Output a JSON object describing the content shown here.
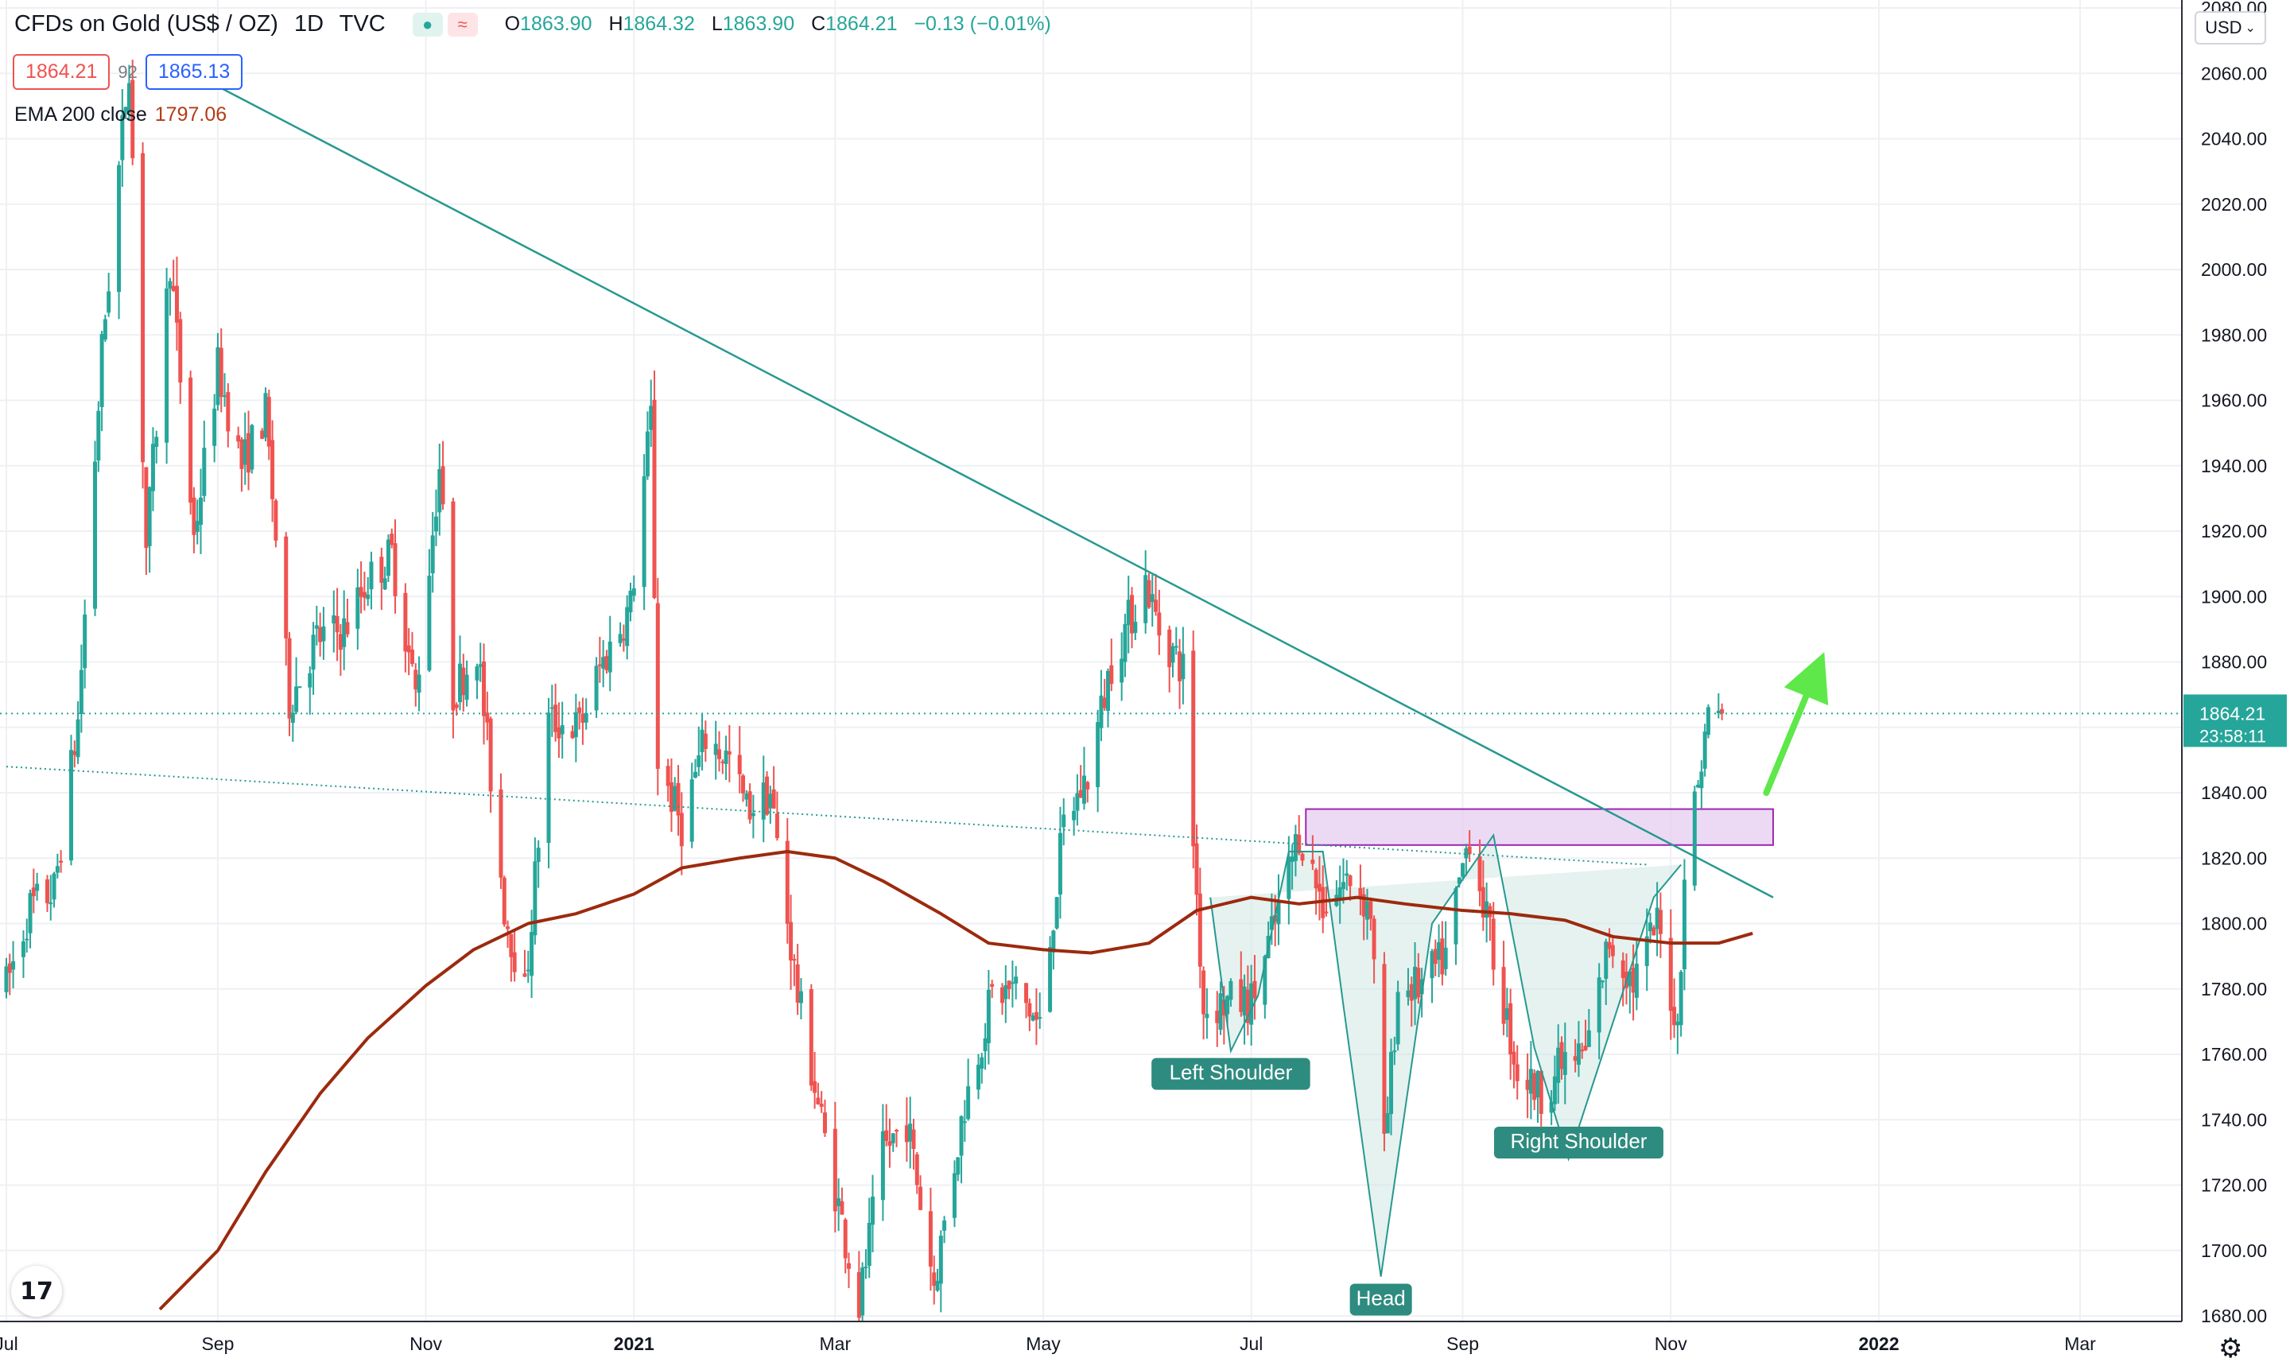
{
  "header": {
    "symbol": "CFDs on Gold (US$ / OZ)",
    "interval": "1D",
    "exchange": "TVC",
    "ohlc": {
      "o_label": "O",
      "open": "1863.90",
      "h_label": "H",
      "high": "1864.32",
      "l_label": "L",
      "low": "1863.90",
      "c_label": "C",
      "close": "1864.21",
      "change": "−0.13 (−0.01%)"
    },
    "sell_price": "1864.21",
    "spread": "92",
    "buy_price": "1865.13",
    "indicator_name": "EMA 200 close",
    "indicator_value": "1797.06"
  },
  "controls": {
    "currency": "USD",
    "eye_icon": "visibility-dot-icon",
    "wave_icon": "wave-icon",
    "settings_icon": "gear-icon",
    "logo_text": "17"
  },
  "colors": {
    "up": "#26a69a",
    "down": "#ef5350",
    "ema": "#9c2a0e",
    "trendline": "#26998f",
    "zone_fill": "#e6cdf0",
    "zone_stroke": "#9c27b0",
    "pattern_fill": "#cfe8e4",
    "arrow": "#5ee84a",
    "grid": "#eef0f3"
  },
  "chart_data": {
    "type": "candlestick",
    "y_axis": {
      "ticks": [
        "2080.00",
        "2060.00",
        "2040.00",
        "2020.00",
        "2000.00",
        "1980.00",
        "1960.00",
        "1940.00",
        "1920.00",
        "1900.00",
        "1880.00",
        "1860.00",
        "1840.00",
        "1820.00",
        "1800.00",
        "1780.00",
        "1760.00",
        "1740.00",
        "1720.00",
        "1700.00",
        "1680.00"
      ],
      "ylim": [
        1680,
        2080
      ]
    },
    "x_axis": {
      "ticks": [
        "Jul",
        "Sep",
        "Nov",
        "2021",
        "Mar",
        "May",
        "Jul",
        "Sep",
        "Nov",
        "2022",
        "Mar"
      ],
      "tick_dates": [
        "2020-07-01",
        "2020-09-01",
        "2020-11-01",
        "2021-01-01",
        "2021-03-01",
        "2021-05-01",
        "2021-07-01",
        "2021-09-01",
        "2021-11-01",
        "2022-01-01",
        "2022-03-01"
      ]
    },
    "last_price": {
      "value": 1864.21,
      "label": "1864.21",
      "countdown": "23:58:11"
    },
    "price_path": [
      [
        "2020-07-01",
        1781
      ],
      [
        "2020-07-08",
        1805
      ],
      [
        "2020-07-15",
        1810
      ],
      [
        "2020-07-22",
        1862
      ],
      [
        "2020-07-29",
        1975
      ],
      [
        "2020-08-06",
        2064
      ],
      [
        "2020-08-11",
        1915
      ],
      [
        "2020-08-18",
        2003
      ],
      [
        "2020-08-25",
        1918
      ],
      [
        "2020-09-01",
        1970
      ],
      [
        "2020-09-08",
        1940
      ],
      [
        "2020-09-15",
        1956
      ],
      [
        "2020-09-22",
        1868
      ],
      [
        "2020-09-30",
        1887
      ],
      [
        "2020-10-08",
        1890
      ],
      [
        "2020-10-15",
        1905
      ],
      [
        "2020-10-22",
        1913
      ],
      [
        "2020-10-29",
        1870
      ],
      [
        "2020-11-05",
        1940
      ],
      [
        "2020-11-09",
        1870
      ],
      [
        "2020-11-16",
        1885
      ],
      [
        "2020-11-24",
        1805
      ],
      [
        "2020-11-30",
        1778
      ],
      [
        "2020-12-07",
        1862
      ],
      [
        "2020-12-16",
        1860
      ],
      [
        "2020-12-22",
        1878
      ],
      [
        "2020-12-31",
        1897
      ],
      [
        "2021-01-06",
        1955
      ],
      [
        "2021-01-08",
        1850
      ],
      [
        "2021-01-15",
        1830
      ],
      [
        "2021-01-22",
        1857
      ],
      [
        "2021-01-29",
        1850
      ],
      [
        "2021-02-03",
        1835
      ],
      [
        "2021-02-10",
        1840
      ],
      [
        "2021-02-18",
        1778
      ],
      [
        "2021-02-26",
        1734
      ],
      [
        "2021-03-08",
        1683
      ],
      [
        "2021-03-15",
        1730
      ],
      [
        "2021-03-22",
        1740
      ],
      [
        "2021-03-30",
        1690
      ],
      [
        "2021-04-08",
        1745
      ],
      [
        "2021-04-16",
        1778
      ],
      [
        "2021-04-23",
        1780
      ],
      [
        "2021-04-30",
        1768
      ],
      [
        "2021-05-07",
        1830
      ],
      [
        "2021-05-14",
        1845
      ],
      [
        "2021-05-21",
        1880
      ],
      [
        "2021-05-31",
        1905
      ],
      [
        "2021-06-04",
        1890
      ],
      [
        "2021-06-11",
        1878
      ],
      [
        "2021-06-17",
        1774
      ],
      [
        "2021-06-24",
        1776
      ],
      [
        "2021-07-01",
        1776
      ],
      [
        "2021-07-08",
        1800
      ],
      [
        "2021-07-15",
        1828
      ],
      [
        "2021-07-22",
        1806
      ],
      [
        "2021-07-30",
        1814
      ],
      [
        "2021-08-05",
        1804
      ],
      [
        "2021-08-09",
        1730
      ],
      [
        "2021-08-13",
        1780
      ],
      [
        "2021-08-20",
        1781
      ],
      [
        "2021-08-27",
        1790
      ],
      [
        "2021-09-03",
        1828
      ],
      [
        "2021-09-10",
        1790
      ],
      [
        "2021-09-17",
        1755
      ],
      [
        "2021-09-24",
        1748
      ],
      [
        "2021-09-30",
        1757
      ],
      [
        "2021-10-07",
        1760
      ],
      [
        "2021-10-14",
        1795
      ],
      [
        "2021-10-21",
        1782
      ],
      [
        "2021-10-28",
        1800
      ],
      [
        "2021-11-03",
        1768
      ],
      [
        "2021-11-05",
        1816
      ],
      [
        "2021-11-10",
        1850
      ],
      [
        "2021-11-12",
        1864
      ],
      [
        "2021-11-16",
        1864.21
      ]
    ],
    "ema_200": [
      [
        "2020-08-15",
        1682
      ],
      [
        "2020-09-01",
        1700
      ],
      [
        "2020-09-15",
        1724
      ],
      [
        "2020-10-01",
        1748
      ],
      [
        "2020-10-15",
        1765
      ],
      [
        "2020-11-01",
        1781
      ],
      [
        "2020-11-15",
        1792
      ],
      [
        "2020-12-01",
        1800
      ],
      [
        "2020-12-15",
        1803
      ],
      [
        "2021-01-01",
        1809
      ],
      [
        "2021-01-15",
        1817
      ],
      [
        "2021-02-01",
        1820
      ],
      [
        "2021-02-15",
        1822
      ],
      [
        "2021-03-01",
        1820
      ],
      [
        "2021-03-15",
        1813
      ],
      [
        "2021-04-01",
        1803
      ],
      [
        "2021-04-15",
        1794
      ],
      [
        "2021-05-01",
        1792
      ],
      [
        "2021-05-15",
        1791
      ],
      [
        "2021-06-01",
        1794
      ],
      [
        "2021-06-15",
        1804
      ],
      [
        "2021-07-01",
        1808
      ],
      [
        "2021-07-15",
        1806
      ],
      [
        "2021-08-01",
        1808
      ],
      [
        "2021-08-15",
        1806
      ],
      [
        "2021-09-01",
        1804
      ],
      [
        "2021-09-15",
        1803
      ],
      [
        "2021-10-01",
        1801
      ],
      [
        "2021-10-15",
        1796
      ],
      [
        "2021-11-01",
        1794
      ],
      [
        "2021-11-15",
        1794
      ],
      [
        "2021-11-25",
        1797
      ]
    ],
    "drawings": {
      "descending_trendline": {
        "start": [
          "2020-08-21",
          2062
        ],
        "end": [
          "2021-12-01",
          1808
        ]
      },
      "dotted_trendline": {
        "start": [
          "2020-07-01",
          1848
        ],
        "end": [
          "2021-10-25",
          1818
        ]
      },
      "resistance_zone": {
        "from": "2021-07-17",
        "to": "2021-12-01",
        "top": 1835,
        "bottom": 1824
      },
      "head_and_shoulders": [
        [
          "2021-06-19",
          1808
        ],
        [
          "2021-06-25",
          1761
        ],
        [
          "2021-07-03",
          1778
        ],
        [
          "2021-07-12",
          1822
        ],
        [
          "2021-07-22",
          1822
        ],
        [
          "2021-07-28",
          1775
        ],
        [
          "2021-08-08",
          1692
        ],
        [
          "2021-08-23",
          1800
        ],
        [
          "2021-09-10",
          1827
        ],
        [
          "2021-09-22",
          1762
        ],
        [
          "2021-10-02",
          1728
        ],
        [
          "2021-10-27",
          1808
        ],
        [
          "2021-11-04",
          1818
        ]
      ],
      "upward_arrow": {
        "from": [
          "2021-11-29",
          1840
        ],
        "to": [
          "2021-12-16",
          1883
        ]
      }
    },
    "annotations": [
      {
        "text": "Left Shoulder",
        "date": "2021-06-25",
        "price": 1754
      },
      {
        "text": "Head",
        "date": "2021-08-08",
        "price": 1685
      },
      {
        "text": "Right Shoulder",
        "date": "2021-10-05",
        "price": 1733
      }
    ]
  }
}
